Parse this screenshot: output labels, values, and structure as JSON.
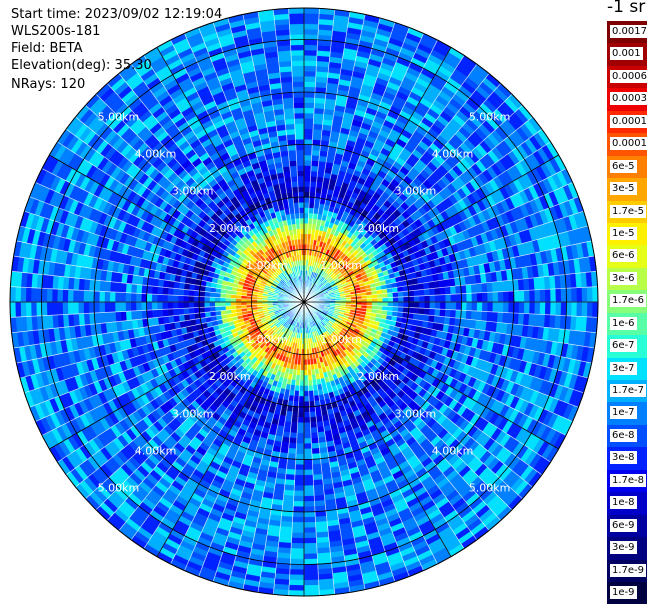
{
  "info": {
    "start_time": "Start time: 2023/09/02 12:19:04",
    "instrument": "WLS200s-181",
    "field": "Field: BETA",
    "elevation": "Elevation(deg): 35.30",
    "nrays": "NRays: 120"
  },
  "colorbar": {
    "unit": "-1 sr",
    "labels": [
      "0.0017",
      "0.001",
      "0.0006",
      "0.0003",
      "0.00017",
      "0.0001",
      "6e-5",
      "3e-5",
      "1.7e-5",
      "1e-5",
      "6e-6",
      "3e-6",
      "1.7e-6",
      "1e-6",
      "6e-7",
      "3e-7",
      "1.7e-7",
      "1e-7",
      "6e-8",
      "3e-8",
      "1.7e-8",
      "1e-8",
      "6e-9",
      "3e-9",
      "1.7e-9",
      "1e-9"
    ],
    "colors": [
      "#7f0000",
      "#a00000",
      "#c80000",
      "#ee0000",
      "#ff2a00",
      "#ff5500",
      "#ff8000",
      "#ffa600",
      "#ffcc00",
      "#fff000",
      "#e6ff19",
      "#b7ff48",
      "#87ff78",
      "#58ffa7",
      "#29ffd6",
      "#00e0ff",
      "#00b0ff",
      "#0080ff",
      "#0050ff",
      "#0022ff",
      "#0000f0",
      "#0000c8",
      "#0000a0",
      "#000080",
      "#000060",
      "#000040"
    ]
  },
  "chart_data": {
    "type": "heatmap",
    "projection": "polar PPI scan",
    "field": "BETA",
    "elevation_deg": 35.3,
    "n_rays": 120,
    "range_rings_km": [
      1,
      2,
      3,
      4,
      5
    ],
    "ring_labels": [
      "1.00km",
      "2.00km",
      "3.00km",
      "4.00km",
      "5.00km"
    ],
    "max_range_km": 5.6,
    "colorscale": "jet (log)",
    "value_range": [
      1e-09,
      0.0017
    ],
    "approx_profile": [
      {
        "range_km": 0.5,
        "beta": 2e-07
      },
      {
        "range_km": 0.95,
        "beta": 3e-05
      },
      {
        "range_km": 1.1,
        "beta": 0.0001
      },
      {
        "range_km": 1.3,
        "beta": 1e-05
      },
      {
        "range_km": 2.0,
        "beta": 1e-08
      },
      {
        "range_km": 3.0,
        "beta": 8e-08
      },
      {
        "range_km": 4.5,
        "beta": 1e-07
      }
    ]
  }
}
